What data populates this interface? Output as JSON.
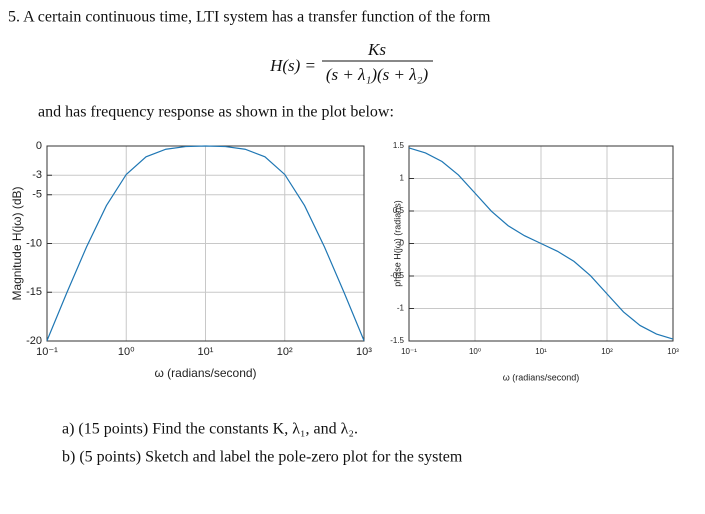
{
  "problem": {
    "intro": "5.  A certain continuous time, LTI system has a transfer function of the form",
    "equation_lhs": "H(s) =",
    "equation_numerator": "Ks",
    "equation_denominator": "(s + λ₁)(s + λ₂)",
    "response_text": "and has frequency response as shown in the plot below:",
    "question_a": "a)  (15 points) Find the constants K, λ₁, and λ₂.",
    "question_b": "b)  (5 points) Sketch and label the pole-zero plot for the system"
  },
  "chart_data": [
    {
      "type": "line",
      "xscale": "log",
      "grid": true,
      "color": "#1f77b4",
      "xlabel": "ω (radians/second)",
      "ylabel": "Magnitude H(jω) (dB)",
      "x": [
        0.1,
        0.1778,
        0.3162,
        0.5623,
        1,
        1.778,
        3.162,
        5.623,
        10,
        17.78,
        31.62,
        56.23,
        100,
        177.8,
        316.2,
        562.3,
        1000
      ],
      "values": [
        -19.96,
        -15.05,
        -10.33,
        -6.11,
        -2.92,
        -1.11,
        -0.33,
        -0.06,
        0,
        -0.06,
        -0.33,
        -1.11,
        -2.92,
        -6.11,
        -10.33,
        -15.05,
        -19.96
      ],
      "xlim": [
        0.1,
        1000
      ],
      "ylim": [
        -20,
        0
      ],
      "xticks": [
        {
          "value": 0.1,
          "label": "10⁻¹"
        },
        {
          "value": 1,
          "label": "10⁰"
        },
        {
          "value": 10,
          "label": "10¹"
        },
        {
          "value": 100,
          "label": "10²"
        },
        {
          "value": 1000,
          "label": "10³"
        }
      ],
      "yticks": [
        -20,
        -15,
        -10,
        -5,
        -3,
        0
      ]
    },
    {
      "type": "line",
      "xscale": "log",
      "grid": true,
      "color": "#1f77b4",
      "xlabel": "ω (radians/second)",
      "ylabel": "phase H(jω) (radians)",
      "x": [
        0.1,
        0.1778,
        0.3162,
        0.5623,
        1,
        1.778,
        3.162,
        5.623,
        10,
        17.78,
        31.62,
        56.23,
        100,
        177.8,
        316.2,
        562.3,
        1000
      ],
      "values": [
        1.47,
        1.393,
        1.261,
        1.053,
        0.775,
        0.495,
        0.275,
        0.12,
        0,
        -0.12,
        -0.275,
        -0.495,
        -0.775,
        -1.053,
        -1.261,
        -1.393,
        -1.47
      ],
      "xlim": [
        0.1,
        1000
      ],
      "ylim": [
        -1.5,
        1.5
      ],
      "xticks": [
        {
          "value": 0.1,
          "label": "10⁻¹"
        },
        {
          "value": 1,
          "label": "10⁰"
        },
        {
          "value": 10,
          "label": "10¹"
        },
        {
          "value": 100,
          "label": "10²"
        },
        {
          "value": 1000,
          "label": "10³"
        }
      ],
      "yticks": [
        -1.5,
        -1,
        -0.5,
        0,
        0.5,
        1,
        1.5
      ]
    }
  ]
}
